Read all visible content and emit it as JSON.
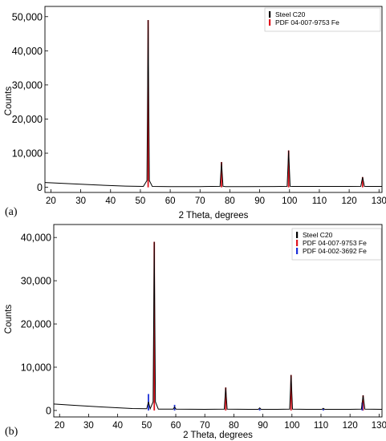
{
  "chart_data": [
    {
      "type": "line",
      "panel_label": "(a)",
      "xlabel": "2 Theta, degrees",
      "ylabel": "Counts",
      "xlim": [
        18,
        131
      ],
      "ylim": [
        -1500,
        53000
      ],
      "x_ticks": [
        "20",
        "30",
        "40",
        "50",
        "60",
        "70",
        "80",
        "90",
        "100",
        "110",
        "120",
        "130"
      ],
      "y_ticks": [
        "0",
        "10,000",
        "20,000",
        "30,000",
        "40,000",
        "50,000"
      ],
      "legend_position": "top-right",
      "series": [
        {
          "name": "Steel C20",
          "color": "#000000",
          "kind": "profile",
          "x": [
            18,
            25,
            35,
            45,
            51,
            52.2,
            52.6,
            53,
            54,
            60,
            70,
            76.7,
            77.2,
            77.7,
            78.5,
            85,
            95,
            99.2,
            99.7,
            100.2,
            101,
            110,
            120,
            123.9,
            124.5,
            125.1,
            126,
            131
          ],
          "y": [
            1400,
            1100,
            700,
            350,
            250,
            2000,
            49000,
            2000,
            250,
            200,
            200,
            300,
            7400,
            300,
            200,
            200,
            220,
            300,
            10800,
            300,
            250,
            250,
            250,
            300,
            3000,
            300,
            250,
            250
          ]
        },
        {
          "name": "PDF 04-007-9753 Fe",
          "color": "#e0141e",
          "kind": "reference",
          "peaks": [
            {
              "x": 52.6,
              "y": 49000
            },
            {
              "x": 77.2,
              "y": 7400
            },
            {
              "x": 99.7,
              "y": 10800
            },
            {
              "x": 124.5,
              "y": 3000
            }
          ]
        }
      ]
    },
    {
      "type": "line",
      "panel_label": "(b)",
      "xlabel": "2 Theta, degrees",
      "ylabel": "Counts",
      "xlim": [
        18,
        131
      ],
      "ylim": [
        -1500,
        43000
      ],
      "x_ticks": [
        "20",
        "30",
        "40",
        "50",
        "60",
        "70",
        "80",
        "90",
        "100",
        "110",
        "120",
        "130"
      ],
      "y_ticks": [
        "0",
        "10,000",
        "20,000",
        "30,000",
        "40,000"
      ],
      "legend_position": "top-right",
      "series": [
        {
          "name": "Steel C20",
          "color": "#000000",
          "kind": "profile",
          "x": [
            18,
            25,
            35,
            45,
            50,
            50.6,
            51.2,
            52.2,
            52.6,
            53,
            54,
            59.1,
            59.6,
            60.1,
            70,
            76.7,
            77.2,
            77.7,
            85,
            88.4,
            88.9,
            89.4,
            95,
            99.2,
            99.7,
            100.2,
            105,
            110.3,
            110.8,
            111.3,
            120,
            123.9,
            124.5,
            125.1,
            131
          ],
          "y": [
            1500,
            1200,
            800,
            450,
            400,
            2000,
            400,
            2000,
            39000,
            2000,
            300,
            300,
            800,
            300,
            250,
            300,
            5300,
            300,
            250,
            250,
            600,
            250,
            250,
            300,
            8200,
            300,
            250,
            250,
            500,
            250,
            250,
            300,
            3500,
            300,
            250
          ]
        },
        {
          "name": "PDF 04-007-9753 Fe",
          "color": "#e0141e",
          "kind": "reference",
          "peaks": [
            {
              "x": 52.6,
              "y": 39000
            },
            {
              "x": 77.2,
              "y": 5300
            },
            {
              "x": 99.7,
              "y": 8200
            },
            {
              "x": 124.5,
              "y": 3500
            }
          ]
        },
        {
          "name": "PDF 04-002-3692 Fe",
          "color": "#1c2fd8",
          "kind": "reference",
          "peaks": [
            {
              "x": 50.6,
              "y": 3800
            },
            {
              "x": 59.6,
              "y": 1300
            },
            {
              "x": 88.9,
              "y": 400
            },
            {
              "x": 110.8,
              "y": 400
            },
            {
              "x": 124.2,
              "y": 1800
            }
          ]
        }
      ]
    }
  ]
}
